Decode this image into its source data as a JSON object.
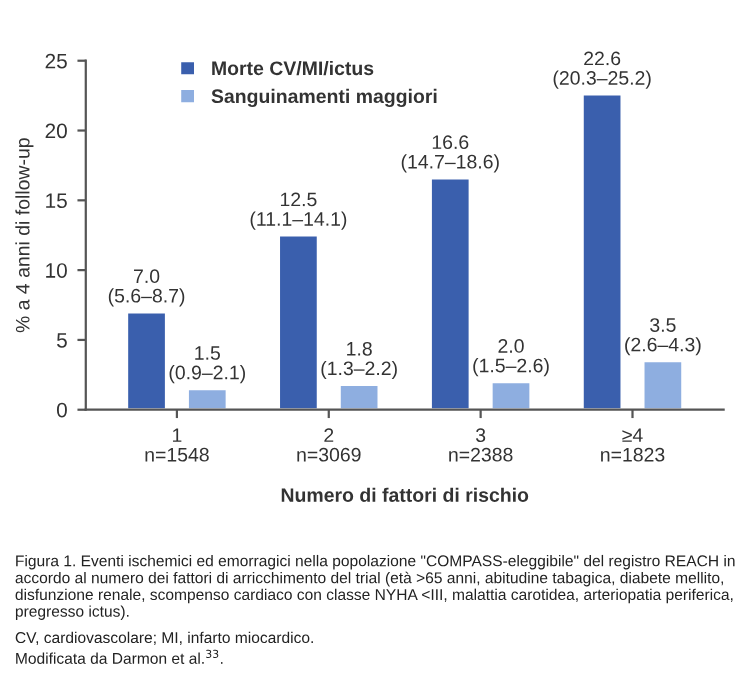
{
  "chart_data": {
    "type": "bar",
    "categories": [
      "1\nn=1548",
      "2\nn=3069",
      "3\nn=2388",
      "≥4\nn=1823"
    ],
    "xlabel": "Numero di fattori di rischio",
    "ylabel": "% a 4 anni di follow-up",
    "ylim": [
      0,
      25
    ],
    "yticks": [
      0,
      5,
      10,
      15,
      20,
      25
    ],
    "series": [
      {
        "name": "Morte CV/MI/ictus",
        "color": "#3a5fad",
        "values": [
          7.0,
          12.5,
          16.6,
          22.6
        ],
        "value_labels": [
          "7.0\n(5.6–8.7)",
          "12.5\n(11.1–14.1)",
          "16.6\n(14.7–18.6)",
          "22.6\n(20.3–25.2)"
        ]
      },
      {
        "name": "Sanguinamenti maggiori",
        "color": "#8eaee0",
        "values": [
          1.5,
          1.8,
          2.0,
          3.5
        ],
        "value_labels": [
          "1.5\n(0.9–2.1)",
          "1.8\n(1.3–2.2)",
          "2.0\n(1.5–2.6)",
          "3.5\n(2.6–4.3)"
        ]
      }
    ],
    "legend": "top left",
    "grid": false,
    "annotations": [
      "Figura 1. Eventi ischemici ed emorragici nella popolazione \"COMPASS-eleggibile\" del registro REACH in accordo al numero dei fattori di arricchimento del trial (età >65 anni, abitudine tabagica, diabete mellito, disfunzione renale, scompenso cardiaco con classe NYHA <III, malattia carotidea, arteriopatia periferica, pregresso ictus).",
      "CV, cardiovascolare; MI, infarto miocardico.",
      "Modificata da Darmon et al.$^{33}$."
    ]
  }
}
